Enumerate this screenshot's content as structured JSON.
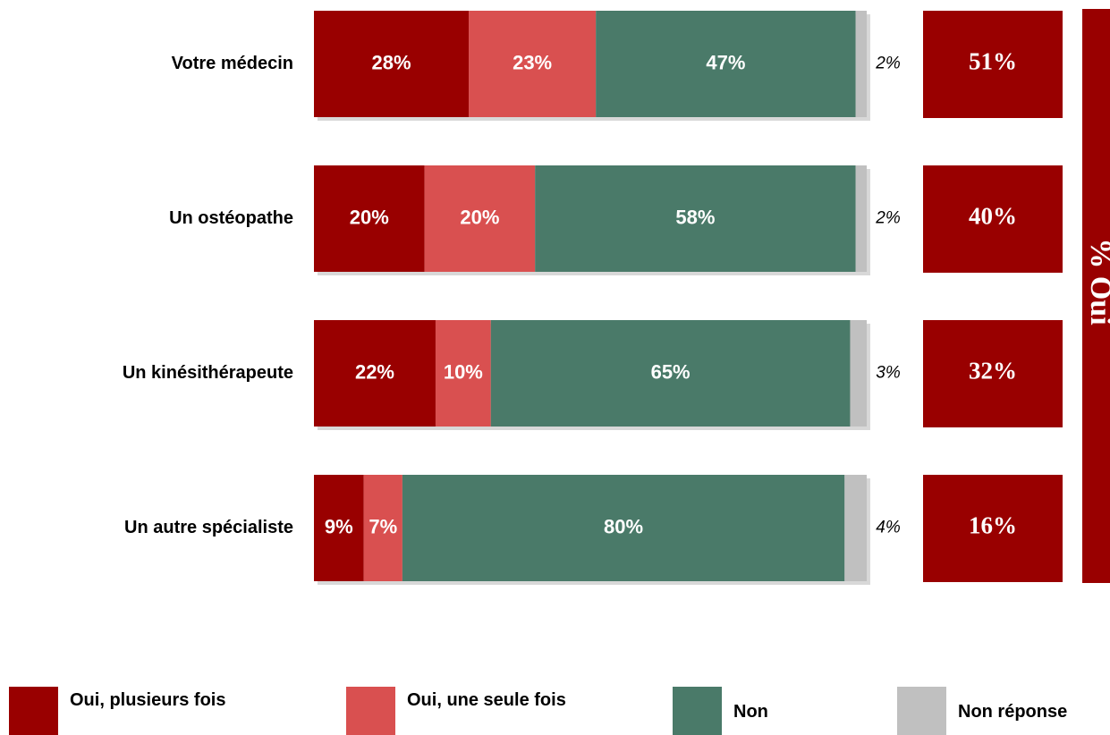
{
  "chart_data": {
    "type": "stacked-bar-horizontal",
    "categories": [
      "Votre médecin",
      "Un ostéopathe",
      "Un kinésithérapeute",
      "Un autre spécialiste"
    ],
    "xlim": [
      0,
      100
    ],
    "series": [
      {
        "name": "Oui, plusieurs fois",
        "color": "#990000",
        "values": [
          28,
          20,
          22,
          9
        ],
        "value_labels": [
          "28%",
          "20%",
          "22%",
          "9%"
        ]
      },
      {
        "name": "Oui, une seule fois",
        "color": "#d95050",
        "values": [
          23,
          20,
          10,
          7
        ],
        "value_labels": [
          "23%",
          "20%",
          "10%",
          "7%"
        ]
      },
      {
        "name": "Non",
        "color": "#4a7a69",
        "values": [
          47,
          58,
          65,
          80
        ],
        "value_labels": [
          "47%",
          "58%",
          "65%",
          "80%"
        ]
      },
      {
        "name": "Non réponse",
        "color": "#c0c0c0",
        "values": [
          2,
          2,
          3,
          4
        ],
        "value_labels": [
          "2%",
          "2%",
          "3%",
          "4%"
        ]
      }
    ],
    "oui_totals": {
      "label": "% Oui",
      "color": "#990000",
      "values": [
        51,
        40,
        32,
        16
      ],
      "value_labels": [
        "51%",
        "40%",
        "32%",
        "16%"
      ]
    }
  }
}
